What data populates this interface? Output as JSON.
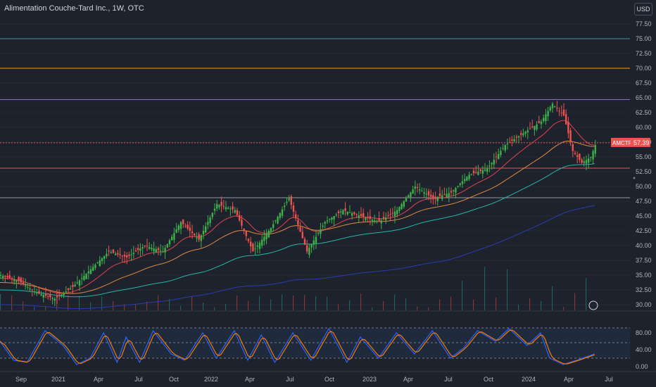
{
  "header": {
    "title": "Alimentation Couche-Tard Inc., 1W, OTC",
    "currency": "USD"
  },
  "colors": {
    "up": "#26a69a",
    "green": "#3bb24a",
    "down": "#ef5350",
    "ema20": "#e0434a",
    "ema50": "#e08a3c",
    "ema100": "#26b6a8",
    "ema200": "#2a3bb0",
    "stochK": "#2962ff",
    "stochD": "#f57c00"
  },
  "chart_data": {
    "type": "candlestick",
    "ticker": "AMCTF",
    "last_price": "57.39",
    "y_ticks": [
      "77.50",
      "75.00",
      "72.50",
      "70.00",
      "67.50",
      "65.00",
      "62.50",
      "60.00",
      "57.50",
      "55.00",
      "52.50",
      "50.00",
      "47.50",
      "45.00",
      "42.50",
      "40.00",
      "37.50",
      "35.00",
      "32.50",
      "30.00"
    ],
    "ylim": [
      30,
      77.5
    ],
    "x_ticks": [
      "Sep",
      "2021",
      "Apr",
      "Jul",
      "Oct",
      "2022",
      "Apr",
      "Jul",
      "Oct",
      "2023",
      "Apr",
      "Jul",
      "Oct",
      "2024",
      "Apr",
      "Jul"
    ],
    "horizontal_levels": [
      {
        "value": 75,
        "color": "#26a69a"
      },
      {
        "value": 70,
        "color": "#f59e0b"
      },
      {
        "value": 64.7,
        "color": "#3bb24a"
      },
      {
        "value": 57.4,
        "color": "#ef5350",
        "dashed": true
      },
      {
        "value": 53.1,
        "color": "#ef5350"
      },
      {
        "value": 48.1,
        "color": "#9598a1"
      }
    ],
    "price_anchors": [
      [
        0,
        35
      ],
      [
        8,
        34
      ],
      [
        16,
        32
      ],
      [
        24,
        31
      ],
      [
        32,
        33
      ],
      [
        40,
        36
      ],
      [
        48,
        39
      ],
      [
        56,
        38
      ],
      [
        64,
        40
      ],
      [
        72,
        39
      ],
      [
        80,
        44
      ],
      [
        88,
        41
      ],
      [
        96,
        47
      ],
      [
        104,
        46
      ],
      [
        112,
        39
      ],
      [
        120,
        43
      ],
      [
        128,
        48
      ],
      [
        136,
        39
      ],
      [
        144,
        44
      ],
      [
        152,
        46
      ],
      [
        160,
        45
      ],
      [
        168,
        44
      ],
      [
        176,
        46
      ],
      [
        184,
        50
      ],
      [
        192,
        48
      ],
      [
        200,
        49
      ],
      [
        208,
        52
      ],
      [
        216,
        53
      ],
      [
        224,
        57
      ],
      [
        232,
        59
      ],
      [
        240,
        61
      ],
      [
        245,
        64
      ],
      [
        250,
        62
      ],
      [
        254,
        56
      ],
      [
        258,
        54
      ],
      [
        262,
        55
      ],
      [
        264,
        57
      ]
    ],
    "stoch_anchors": [
      [
        0,
        60
      ],
      [
        6,
        15
      ],
      [
        12,
        10
      ],
      [
        20,
        85
      ],
      [
        28,
        50
      ],
      [
        34,
        5
      ],
      [
        40,
        20
      ],
      [
        46,
        80
      ],
      [
        52,
        10
      ],
      [
        56,
        70
      ],
      [
        62,
        10
      ],
      [
        68,
        85
      ],
      [
        76,
        30
      ],
      [
        82,
        15
      ],
      [
        90,
        80
      ],
      [
        96,
        20
      ],
      [
        104,
        85
      ],
      [
        110,
        15
      ],
      [
        116,
        75
      ],
      [
        122,
        10
      ],
      [
        130,
        80
      ],
      [
        138,
        15
      ],
      [
        146,
        90
      ],
      [
        154,
        10
      ],
      [
        160,
        70
      ],
      [
        168,
        20
      ],
      [
        176,
        80
      ],
      [
        184,
        30
      ],
      [
        192,
        85
      ],
      [
        200,
        20
      ],
      [
        206,
        45
      ],
      [
        212,
        85
      ],
      [
        220,
        60
      ],
      [
        226,
        90
      ],
      [
        234,
        50
      ],
      [
        240,
        80
      ],
      [
        244,
        20
      ],
      [
        250,
        5
      ],
      [
        256,
        15
      ],
      [
        264,
        30
      ]
    ],
    "stoch_ticks": [
      "80.00",
      "40.00",
      "0.00"
    ]
  }
}
